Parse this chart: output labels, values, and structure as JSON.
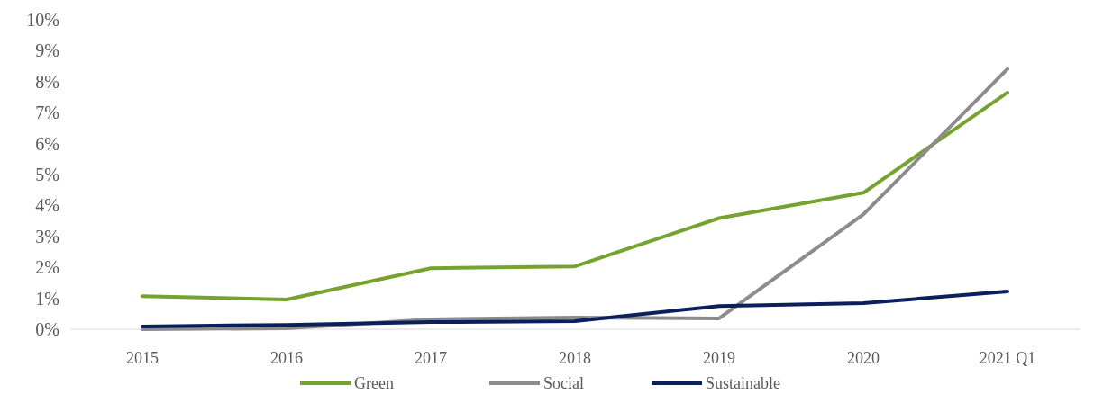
{
  "chart_data": {
    "type": "line",
    "categories": [
      "2015",
      "2016",
      "2017",
      "2018",
      "2019",
      "2020",
      "2021 Q1"
    ],
    "series": [
      {
        "name": "Green",
        "color": "#77a22f",
        "values": [
          1.07,
          0.96,
          1.97,
          2.03,
          3.59,
          4.41,
          7.65
        ]
      },
      {
        "name": "Social",
        "color": "#8c8c8c",
        "values": [
          0.0,
          0.03,
          0.32,
          0.38,
          0.35,
          3.71,
          8.41
        ]
      },
      {
        "name": "Sustainable",
        "color": "#0b1f5c",
        "values": [
          0.09,
          0.14,
          0.23,
          0.26,
          0.75,
          0.84,
          1.22
        ]
      }
    ],
    "ylim": [
      0,
      10
    ],
    "yticks": [
      {
        "value": 0,
        "label": "0%"
      },
      {
        "value": 1,
        "label": "1%"
      },
      {
        "value": 2,
        "label": "2%"
      },
      {
        "value": 3,
        "label": "3%"
      },
      {
        "value": 4,
        "label": "4%"
      },
      {
        "value": 5,
        "label": "5%"
      },
      {
        "value": 6,
        "label": "6%"
      },
      {
        "value": 7,
        "label": "7%"
      },
      {
        "value": 8,
        "label": "8%"
      },
      {
        "value": 9,
        "label": "9%"
      },
      {
        "value": 10,
        "label": "10%"
      }
    ],
    "grid": false,
    "legend": "bottom",
    "marker": "none",
    "line_style": "solid"
  }
}
